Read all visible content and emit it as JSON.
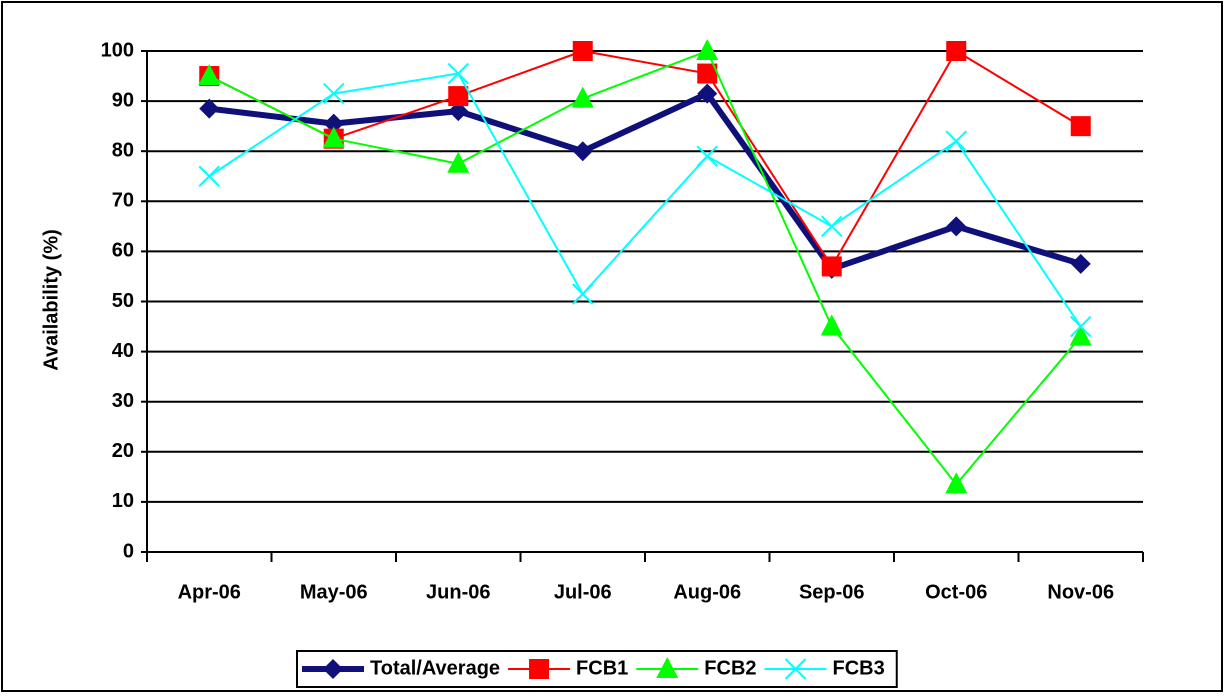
{
  "chart_data": {
    "type": "line",
    "y_label": "Availability (%)",
    "categories": [
      "Apr-06",
      "May-06",
      "Jun-06",
      "Jul-06",
      "Aug-06",
      "Sep-06",
      "Oct-06",
      "Nov-06"
    ],
    "series": [
      {
        "name": "Total/Average",
        "color": "#10107a",
        "marker": "diamond",
        "values": [
          88.5,
          85.5,
          88,
          80,
          91.5,
          56.5,
          65,
          57.5
        ]
      },
      {
        "name": "FCB1",
        "color": "#ff0000",
        "marker": "square",
        "values": [
          95,
          82.5,
          91,
          100,
          95.5,
          57,
          100,
          85
        ]
      },
      {
        "name": "FCB2",
        "color": "#00ff00",
        "marker": "triangle",
        "values": [
          95,
          82.5,
          77.5,
          90.5,
          100,
          45,
          13.5,
          43
        ]
      },
      {
        "name": "FCB3",
        "color": "#00ffff",
        "marker": "x",
        "values": [
          75,
          91.5,
          95.5,
          51.5,
          79,
          65,
          82,
          45
        ]
      }
    ],
    "ylim": [
      0,
      100
    ],
    "yticks": [
      0,
      10,
      20,
      30,
      40,
      50,
      60,
      70,
      80,
      90,
      100
    ],
    "grid": true,
    "legend": "bottom"
  }
}
